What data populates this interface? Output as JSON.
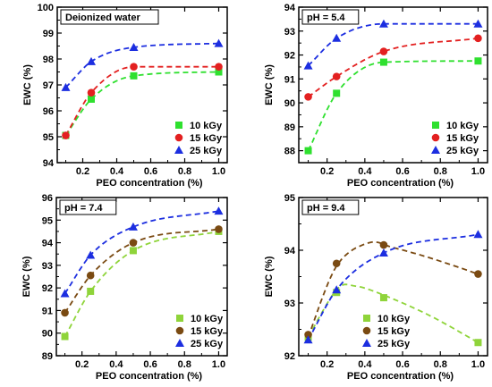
{
  "colors": {
    "10 kGy": "#2fe02f",
    "15 kGy": "#e32020",
    "25 kGy": "#1c2ee0",
    "15 kGy panels c-d": "#7a4a12",
    "10 kGy panels c-d": "#8fd43a"
  },
  "chart_data": [
    {
      "type": "scatter",
      "title": "Deionized water",
      "xlabel": "PEO concentration (%)",
      "ylabel": "EWC (%)",
      "xlim": [
        0.05,
        1.05
      ],
      "ylim": [
        94,
        100
      ],
      "xticks": [
        "0.2",
        "0.4",
        "0.6",
        "0.8",
        "1.0"
      ],
      "yticks": [
        "94",
        "95",
        "96",
        "97",
        "98",
        "99",
        "100"
      ],
      "legend": "bottom-right",
      "trend": "dashed fit curves",
      "series": [
        {
          "name": "10 kGy",
          "color": "#2fe02f",
          "marker": "square",
          "x": [
            0.1,
            0.25,
            0.5,
            1.0
          ],
          "y": [
            95.05,
            96.45,
            97.35,
            97.5
          ]
        },
        {
          "name": "15 kGy",
          "color": "#e32020",
          "marker": "circle",
          "x": [
            0.1,
            0.25,
            0.5,
            1.0
          ],
          "y": [
            95.05,
            96.7,
            97.7,
            97.7
          ]
        },
        {
          "name": "25 kGy",
          "color": "#1c2ee0",
          "marker": "triangle",
          "x": [
            0.1,
            0.25,
            0.5,
            1.0
          ],
          "y": [
            96.9,
            97.9,
            98.45,
            98.6
          ]
        }
      ]
    },
    {
      "type": "scatter",
      "title": "pH = 5.4",
      "xlabel": "PEO concentration (%)",
      "ylabel": "EWC (%)",
      "xlim": [
        0.05,
        1.05
      ],
      "ylim": [
        87.5,
        94
      ],
      "xticks": [
        "0.2",
        "0.4",
        "0.6",
        "0.8",
        "1.0"
      ],
      "yticks": [
        "88",
        "89",
        "90",
        "91",
        "92",
        "93",
        "94"
      ],
      "legend": "bottom-right",
      "trend": "dashed fit curves",
      "series": [
        {
          "name": "10 kGy",
          "color": "#2fe02f",
          "marker": "square",
          "x": [
            0.1,
            0.25,
            0.5,
            1.0
          ],
          "y": [
            88.0,
            90.4,
            91.7,
            91.75
          ]
        },
        {
          "name": "15 kGy",
          "color": "#e32020",
          "marker": "circle",
          "x": [
            0.1,
            0.25,
            0.5,
            1.0
          ],
          "y": [
            90.25,
            91.1,
            92.15,
            92.7
          ]
        },
        {
          "name": "25 kGy",
          "color": "#1c2ee0",
          "marker": "triangle",
          "x": [
            0.1,
            0.25,
            0.5,
            1.0
          ],
          "y": [
            91.55,
            92.7,
            93.3,
            93.3
          ]
        }
      ]
    },
    {
      "type": "scatter",
      "title": "pH = 7.4",
      "xlabel": "PEO concentration (%)",
      "ylabel": "EWC (%)",
      "xlim": [
        0.05,
        1.05
      ],
      "ylim": [
        89,
        96
      ],
      "xticks": [
        "0.2",
        "0.4",
        "0.6",
        "0.8",
        "1.0"
      ],
      "yticks": [
        "89",
        "90",
        "91",
        "92",
        "93",
        "94",
        "95",
        "96"
      ],
      "legend": "bottom-right",
      "trend": "dashed fit curves",
      "series": [
        {
          "name": "10 kGy",
          "color": "#8fd43a",
          "marker": "square",
          "x": [
            0.1,
            0.25,
            0.5,
            1.0
          ],
          "y": [
            89.85,
            91.85,
            93.65,
            94.5
          ]
        },
        {
          "name": "15 kGy",
          "color": "#7a4a12",
          "marker": "circle",
          "x": [
            0.1,
            0.25,
            0.5,
            1.0
          ],
          "y": [
            90.9,
            92.55,
            94.0,
            94.6
          ]
        },
        {
          "name": "25 kGy",
          "color": "#1c2ee0",
          "marker": "triangle",
          "x": [
            0.1,
            0.25,
            0.5,
            1.0
          ],
          "y": [
            91.75,
            93.45,
            94.7,
            95.4
          ]
        }
      ]
    },
    {
      "type": "scatter",
      "title": "pH = 9.4",
      "xlabel": "PEO concentration (%)",
      "ylabel": "EWC (%)",
      "xlim": [
        0.05,
        1.05
      ],
      "ylim": [
        92,
        95
      ],
      "xticks": [
        "0.2",
        "0.4",
        "0.6",
        "0.8",
        "1.0"
      ],
      "yticks": [
        "92",
        "93",
        "94",
        "95"
      ],
      "legend": "bottom-center",
      "trend": "dashed fit curves",
      "series": [
        {
          "name": "10 kGy",
          "color": "#8fd43a",
          "marker": "square",
          "x": [
            0.1,
            0.25,
            0.5,
            1.0
          ],
          "y": [
            92.35,
            93.2,
            93.1,
            92.25
          ]
        },
        {
          "name": "15 kGy",
          "color": "#7a4a12",
          "marker": "circle",
          "x": [
            0.1,
            0.25,
            0.5,
            1.0
          ],
          "y": [
            92.4,
            93.75,
            94.1,
            93.55
          ]
        },
        {
          "name": "25 kGy",
          "color": "#1c2ee0",
          "marker": "triangle",
          "x": [
            0.1,
            0.25,
            0.5,
            1.0
          ],
          "y": [
            92.3,
            93.25,
            93.95,
            94.3
          ]
        }
      ]
    }
  ]
}
